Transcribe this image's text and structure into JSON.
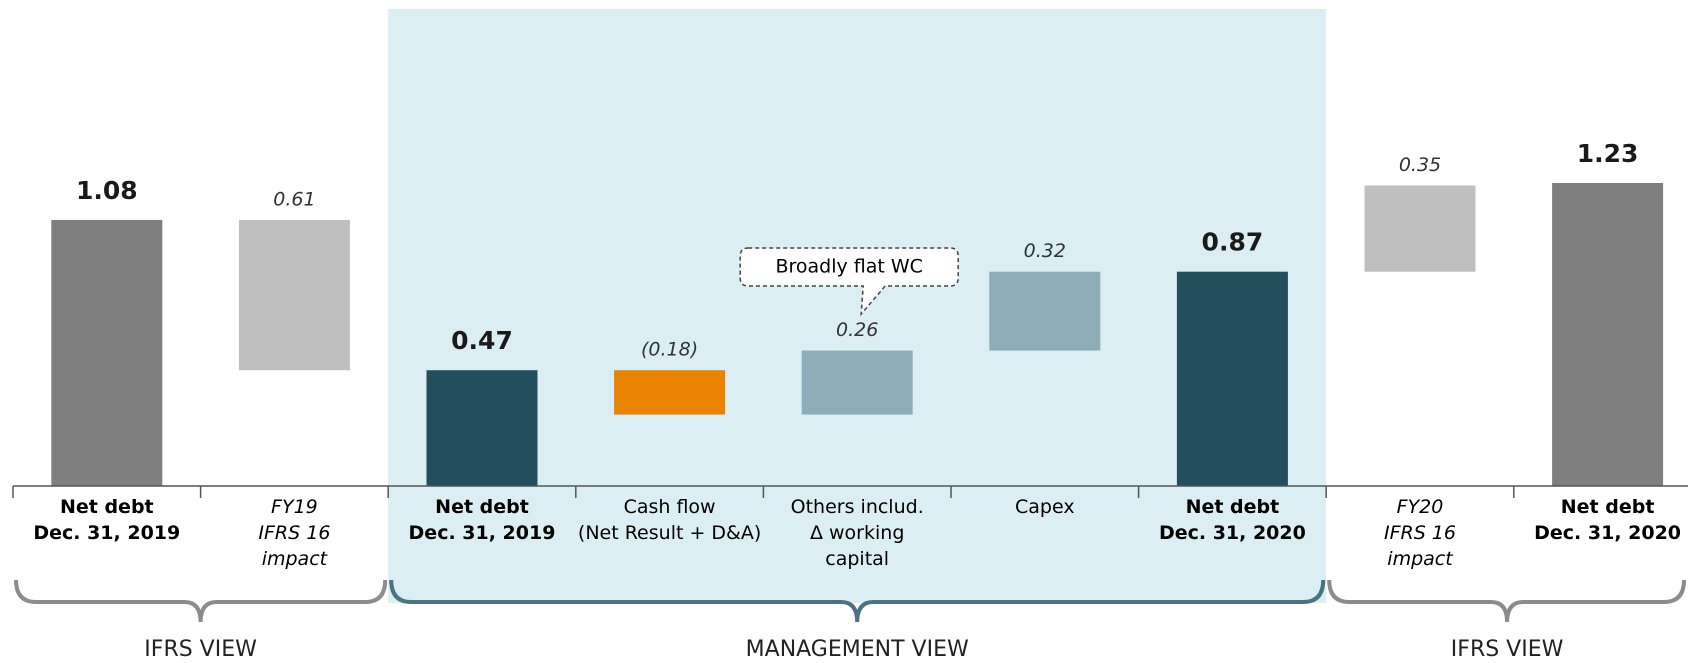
{
  "chart_data": {
    "type": "waterfall",
    "categories": [
      [
        "Net debt",
        "Dec. 31, 2019"
      ],
      [
        "FY19",
        "IFRS 16",
        "impact"
      ],
      [
        "Net debt",
        "Dec. 31, 2019"
      ],
      [
        "Cash flow",
        "(Net Result + D&A)"
      ],
      [
        "Others includ.",
        "Δ working",
        "capital"
      ],
      [
        "Capex"
      ],
      [
        "Net debt",
        "Dec. 31, 2020"
      ],
      [
        "FY20",
        "IFRS 16",
        "impact"
      ],
      [
        "Net debt",
        "Dec. 31, 2020"
      ]
    ],
    "measure": [
      "total",
      "relative",
      "total",
      "relative",
      "relative",
      "relative",
      "total",
      "relative",
      "total"
    ],
    "values": [
      1.08,
      -0.61,
      0.47,
      -0.18,
      0.26,
      0.32,
      0.87,
      0.35,
      1.23
    ],
    "value_labels": [
      "1.08",
      "0.61",
      "0.47",
      "(0.18)",
      "0.26",
      "0.32",
      "0.87",
      "0.35",
      "1.23"
    ],
    "colors": [
      "#7f7f7f",
      "#bfbfbf",
      "#234f5c",
      "#e98300",
      "#8fadb9",
      "#8fadb9",
      "#234f5c",
      "#bfbfbf",
      "#7f7f7f"
    ],
    "groups": [
      {
        "label": "IFRS VIEW",
        "from": 0,
        "to": 1,
        "color": "#8c8c8c"
      },
      {
        "label": "MANAGEMENT VIEW",
        "from": 2,
        "to": 6,
        "color": "#4a7384",
        "highlight": "#daeef3"
      },
      {
        "label": "IFRS VIEW",
        "from": 7,
        "to": 8,
        "color": "#8c8c8c"
      }
    ],
    "annotations": [
      {
        "text": "Broadly flat WC",
        "category": 4
      }
    ]
  }
}
